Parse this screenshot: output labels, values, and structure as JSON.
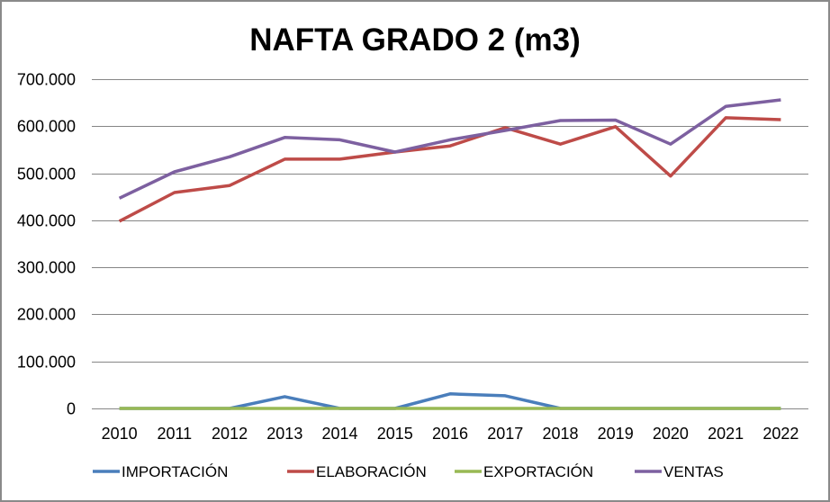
{
  "chart_data": {
    "type": "line",
    "title": "NAFTA GRADO 2 (m3)",
    "xlabel": "",
    "ylabel": "",
    "categories": [
      "2010",
      "2011",
      "2012",
      "2013",
      "2014",
      "2015",
      "2016",
      "2017",
      "2018",
      "2019",
      "2020",
      "2021",
      "2022"
    ],
    "ylim": [
      0,
      700000
    ],
    "yticks": [
      0,
      100000,
      200000,
      300000,
      400000,
      500000,
      600000,
      700000
    ],
    "ytick_labels": [
      "0",
      "100.000",
      "200.000",
      "300.000",
      "400.000",
      "500.000",
      "600.000",
      "700.000"
    ],
    "grid": true,
    "legend_position": "bottom",
    "series": [
      {
        "name": "IMPORTACIÓN",
        "color": "#4a7ebb",
        "values": [
          0,
          0,
          0,
          25000,
          0,
          0,
          31000,
          27000,
          0,
          0,
          0,
          0,
          0
        ]
      },
      {
        "name": "ELABORACIÓN",
        "color": "#be4b48",
        "values": [
          398000,
          459000,
          474000,
          530000,
          530000,
          545000,
          558000,
          597000,
          562000,
          599000,
          494000,
          618000,
          614000
        ]
      },
      {
        "name": "EXPORTACIÓN",
        "color": "#98b954",
        "values": [
          0,
          0,
          0,
          0,
          0,
          0,
          0,
          0,
          0,
          0,
          0,
          0,
          0
        ]
      },
      {
        "name": "VENTAS",
        "color": "#7d60a0",
        "values": [
          447000,
          503000,
          535000,
          576000,
          571000,
          545000,
          571000,
          591000,
          612000,
          613000,
          562000,
          642000,
          656000
        ]
      }
    ]
  }
}
